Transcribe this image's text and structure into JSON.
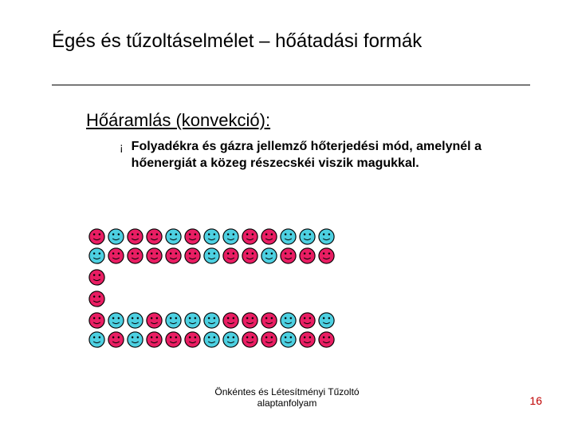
{
  "title": "Égés és tűzoltáselmélet – hőátadási formák",
  "subtitle": "Hőáramlás (konvekció):",
  "bullet": "¡",
  "body": "Folyadékra és gázra jellemző hőterjedési mód, amelynél a hőenergiát a közeg részecskéi viszik magukkal.",
  "footer_line1": "Önkéntes és Létesítményi Tűzoltó",
  "footer_line2": "alaptanfolyam",
  "page_number": "16",
  "smiley_rows": [
    {
      "count": 13,
      "colors": [
        "red",
        "cyan",
        "red",
        "red",
        "cyan",
        "red",
        "cyan",
        "cyan",
        "red",
        "red",
        "cyan",
        "cyan",
        "cyan"
      ],
      "gap_after": 0
    },
    {
      "count": 13,
      "colors": [
        "cyan",
        "red",
        "red",
        "red",
        "red",
        "red",
        "cyan",
        "red",
        "red",
        "cyan",
        "red",
        "red",
        "red"
      ],
      "gap_after": 4
    },
    {
      "count": 1,
      "colors": [
        "red"
      ],
      "gap_after": 4
    },
    {
      "count": 1,
      "colors": [
        "red"
      ],
      "gap_after": 4
    },
    {
      "count": 13,
      "colors": [
        "red",
        "cyan",
        "cyan",
        "red",
        "cyan",
        "cyan",
        "cyan",
        "red",
        "red",
        "red",
        "cyan",
        "red",
        "cyan"
      ],
      "gap_after": 0
    },
    {
      "count": 13,
      "colors": [
        "cyan",
        "red",
        "cyan",
        "red",
        "red",
        "red",
        "cyan",
        "cyan",
        "red",
        "red",
        "cyan",
        "red",
        "red"
      ],
      "gap_after": 0
    }
  ],
  "colors": {
    "red": "#e91e63",
    "cyan": "#4dd0e1"
  }
}
